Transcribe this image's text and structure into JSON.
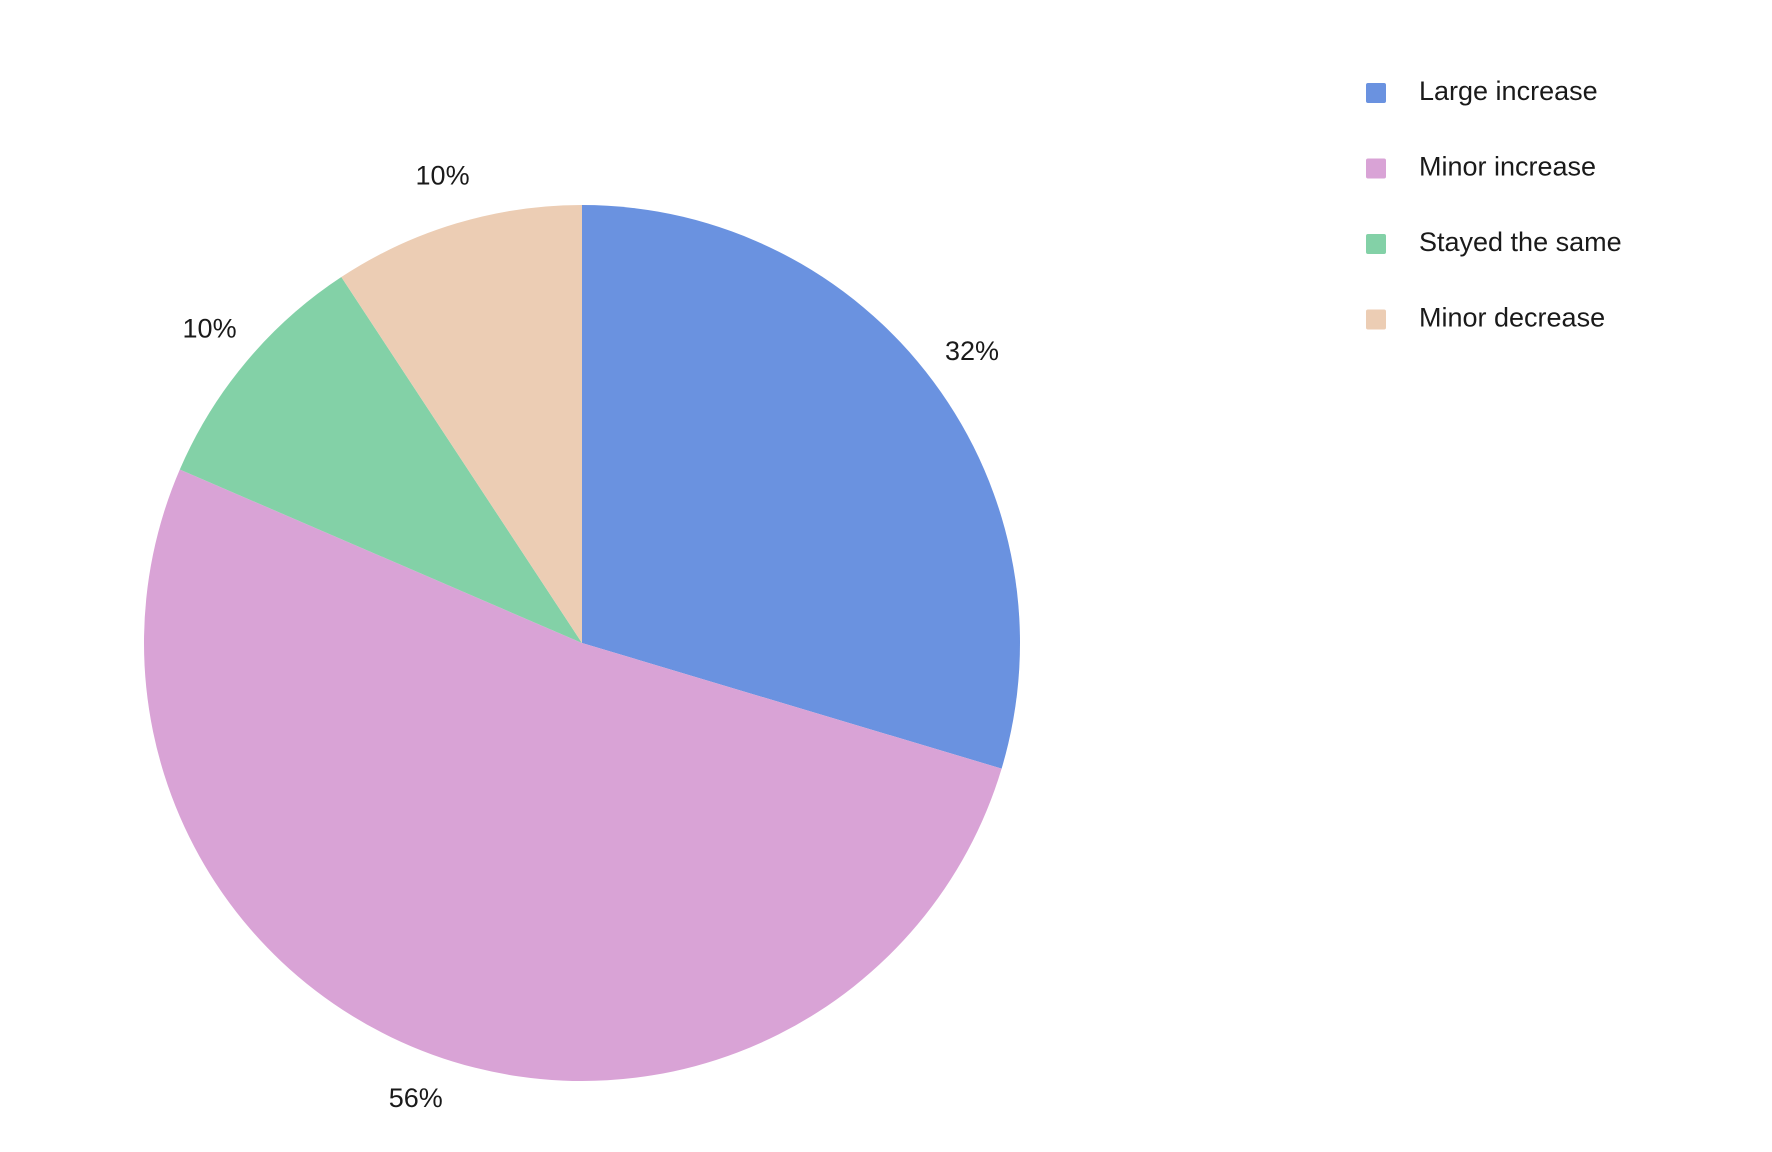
{
  "chart_data": {
    "type": "pie",
    "categories": [
      "Large increase",
      "Minor increase",
      "Stayed the same",
      "Minor decrease"
    ],
    "values": [
      32,
      56,
      10,
      10
    ],
    "value_labels": [
      "32%",
      "56%",
      "10%",
      "10%"
    ],
    "colors": [
      "#6a92e0",
      "#d9a3d6",
      "#83d1a7",
      "#eccdb4"
    ]
  }
}
